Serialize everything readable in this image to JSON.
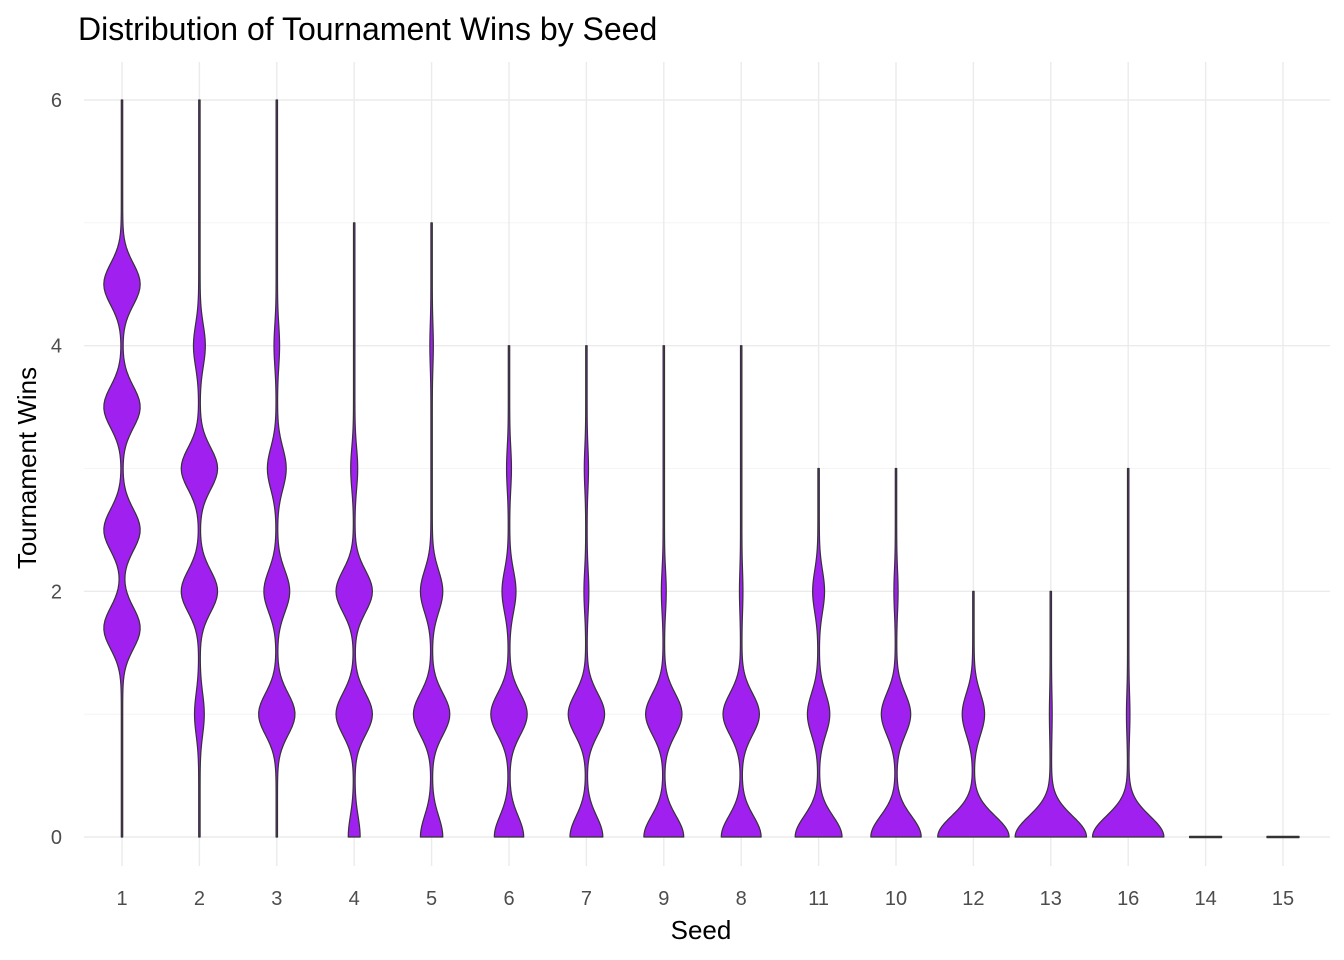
{
  "chart_data": {
    "type": "violin",
    "title": "Distribution of Tournament Wins by Seed",
    "xlabel": "Seed",
    "ylabel": "Tournament Wins",
    "ylim": [
      -0.22,
      6.3
    ],
    "y_ticks": [
      0,
      2,
      4,
      6
    ],
    "grid": true,
    "legend": "none",
    "fill_color": "#a020f0",
    "outline_color": "#333333",
    "categories": [
      "1",
      "2",
      "3",
      "4",
      "5",
      "6",
      "7",
      "9",
      "8",
      "11",
      "10",
      "12",
      "13",
      "16",
      "14",
      "15"
    ],
    "series": [
      {
        "seed": "1",
        "min": 0,
        "max": 6,
        "peaks": [
          [
            1.7,
            0.5
          ],
          [
            2.5,
            0.5
          ],
          [
            3.5,
            0.5
          ],
          [
            4.5,
            0.5
          ]
        ]
      },
      {
        "seed": "2",
        "min": 0,
        "max": 6,
        "peaks": [
          [
            1,
            0.12
          ],
          [
            2,
            0.5
          ],
          [
            3,
            0.5
          ],
          [
            4,
            0.15
          ]
        ]
      },
      {
        "seed": "3",
        "min": 0,
        "max": 6,
        "peaks": [
          [
            1,
            0.5
          ],
          [
            2,
            0.35
          ],
          [
            3,
            0.25
          ],
          [
            4,
            0.06
          ]
        ]
      },
      {
        "seed": "4",
        "min": 0,
        "max": 5,
        "peaks": [
          [
            0,
            0.15
          ],
          [
            1,
            0.5
          ],
          [
            2,
            0.5
          ],
          [
            3,
            0.08
          ]
        ]
      },
      {
        "seed": "5",
        "min": 0,
        "max": 5,
        "peaks": [
          [
            0,
            0.3
          ],
          [
            1,
            0.5
          ],
          [
            2,
            0.3
          ],
          [
            4,
            0.03
          ]
        ]
      },
      {
        "seed": "6",
        "min": 0,
        "max": 4,
        "peaks": [
          [
            0,
            0.4
          ],
          [
            1,
            0.5
          ],
          [
            2,
            0.18
          ],
          [
            3,
            0.05
          ]
        ]
      },
      {
        "seed": "7",
        "min": 0,
        "max": 4,
        "peaks": [
          [
            0,
            0.45
          ],
          [
            1,
            0.5
          ],
          [
            2,
            0.05
          ],
          [
            3,
            0.04
          ]
        ]
      },
      {
        "seed": "9",
        "min": 0,
        "max": 4,
        "peaks": [
          [
            0,
            0.55
          ],
          [
            1,
            0.5
          ],
          [
            2,
            0.05
          ]
        ]
      },
      {
        "seed": "8",
        "min": 0,
        "max": 4,
        "peaks": [
          [
            0,
            0.55
          ],
          [
            1,
            0.5
          ],
          [
            2,
            0.03
          ]
        ]
      },
      {
        "seed": "11",
        "min": 0,
        "max": 3,
        "peaks": [
          [
            0,
            0.65
          ],
          [
            1,
            0.3
          ],
          [
            2,
            0.15
          ]
        ]
      },
      {
        "seed": "10",
        "min": 0,
        "max": 3,
        "peaks": [
          [
            0,
            0.7
          ],
          [
            1,
            0.4
          ],
          [
            2,
            0.04
          ]
        ]
      },
      {
        "seed": "12",
        "min": 0,
        "max": 2,
        "peaks": [
          [
            0,
            1
          ],
          [
            1,
            0.3
          ]
        ]
      },
      {
        "seed": "13",
        "min": 0,
        "max": 2,
        "peaks": [
          [
            0,
            1
          ],
          [
            1,
            0.02
          ]
        ]
      },
      {
        "seed": "16",
        "min": 0,
        "max": 3,
        "peaks": [
          [
            0,
            1
          ],
          [
            1,
            0.03
          ]
        ]
      },
      {
        "seed": "14",
        "min": 0,
        "max": 0,
        "peaks": []
      },
      {
        "seed": "15",
        "min": 0,
        "max": 0,
        "peaks": []
      }
    ]
  }
}
